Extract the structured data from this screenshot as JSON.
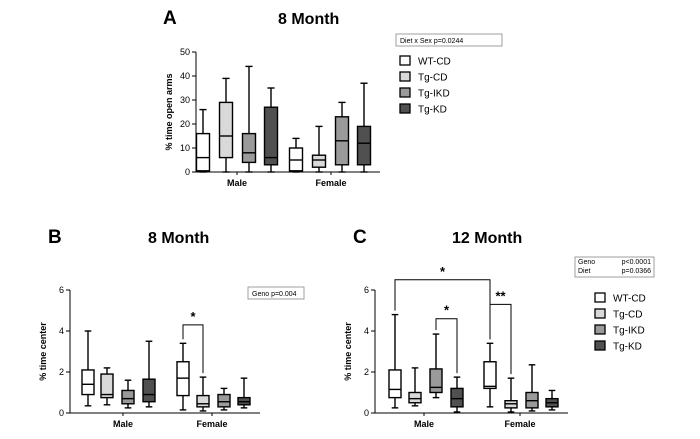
{
  "colors": {
    "WT-CD": "#ffffff",
    "Tg-CD": "#d9d9d9",
    "Tg-IKD": "#9a9a9a",
    "Tg-KD": "#505050"
  },
  "legend": [
    "WT-CD",
    "Tg-CD",
    "Tg-IKD",
    "Tg-KD"
  ],
  "chart_data": [
    {
      "panel": "A",
      "type": "box",
      "title": "8 Month",
      "ylabel": "% time open arms",
      "ylim": [
        0,
        50
      ],
      "yticks": [
        "0",
        "10",
        "20",
        "30",
        "40",
        "50"
      ],
      "categories": [
        "Male",
        "Female"
      ],
      "stat_box": [
        "Diet x Sex  p=0.0244"
      ],
      "boxes": [
        {
          "group": "Male",
          "series": "WT-CD",
          "min": 0,
          "q1": 0.5,
          "median": 6,
          "q3": 16,
          "max": 26
        },
        {
          "group": "Male",
          "series": "Tg-CD",
          "min": 0,
          "q1": 6,
          "median": 15,
          "q3": 29,
          "max": 39
        },
        {
          "group": "Male",
          "series": "Tg-IKD",
          "min": 0,
          "q1": 4,
          "median": 8,
          "q3": 16,
          "max": 44
        },
        {
          "group": "Male",
          "series": "Tg-KD",
          "min": 0,
          "q1": 3,
          "median": 6,
          "q3": 27,
          "max": 35
        },
        {
          "group": "Female",
          "series": "WT-CD",
          "min": 0,
          "q1": 0.5,
          "median": 5,
          "q3": 10,
          "max": 14
        },
        {
          "group": "Female",
          "series": "Tg-CD",
          "min": 0,
          "q1": 2,
          "median": 5,
          "q3": 7,
          "max": 19
        },
        {
          "group": "Female",
          "series": "Tg-IKD",
          "min": 0,
          "q1": 3,
          "median": 13,
          "q3": 23,
          "max": 29
        },
        {
          "group": "Female",
          "series": "Tg-KD",
          "min": 0,
          "q1": 3,
          "median": 12,
          "q3": 19,
          "max": 37
        }
      ],
      "sig": []
    },
    {
      "panel": "B",
      "type": "box",
      "title": "8 Month",
      "ylabel": "% time center",
      "ylim": [
        0,
        6
      ],
      "yticks": [
        "0",
        "2",
        "4",
        "6"
      ],
      "categories": [
        "Male",
        "Female"
      ],
      "stat_box": [
        "Geno p=0.004"
      ],
      "boxes": [
        {
          "group": "Male",
          "series": "WT-CD",
          "min": 0.35,
          "q1": 0.9,
          "median": 1.4,
          "q3": 2.1,
          "max": 4.0
        },
        {
          "group": "Male",
          "series": "Tg-CD",
          "min": 0.4,
          "q1": 0.75,
          "median": 0.9,
          "q3": 1.9,
          "max": 2.2
        },
        {
          "group": "Male",
          "series": "Tg-IKD",
          "min": 0.25,
          "q1": 0.45,
          "median": 0.7,
          "q3": 1.1,
          "max": 1.6
        },
        {
          "group": "Male",
          "series": "Tg-KD",
          "min": 0.3,
          "q1": 0.55,
          "median": 0.9,
          "q3": 1.65,
          "max": 3.5
        },
        {
          "group": "Female",
          "series": "WT-CD",
          "min": 0.15,
          "q1": 0.85,
          "median": 1.7,
          "q3": 2.5,
          "max": 3.4
        },
        {
          "group": "Female",
          "series": "Tg-CD",
          "min": 0.1,
          "q1": 0.3,
          "median": 0.45,
          "q3": 0.85,
          "max": 1.75
        },
        {
          "group": "Female",
          "series": "Tg-IKD",
          "min": 0.15,
          "q1": 0.3,
          "median": 0.55,
          "q3": 0.9,
          "max": 1.2
        },
        {
          "group": "Female",
          "series": "Tg-KD",
          "min": 0.25,
          "q1": 0.4,
          "median": 0.55,
          "q3": 0.75,
          "max": 1.7
        }
      ],
      "sig": [
        {
          "label": "*",
          "from": [
            1,
            0
          ],
          "to": [
            1,
            1
          ],
          "y": 4.3
        }
      ]
    },
    {
      "panel": "C",
      "type": "box",
      "title": "12 Month",
      "ylabel": "% time center",
      "ylim": [
        0,
        6
      ],
      "yticks": [
        "0",
        "2",
        "4",
        "6"
      ],
      "categories": [
        "Male",
        "Female"
      ],
      "stat_box": [
        "Geno",
        "p<0.0001",
        "Diet",
        "p=0.0366"
      ],
      "boxes": [
        {
          "group": "Male",
          "series": "WT-CD",
          "min": 0.25,
          "q1": 0.75,
          "median": 1.15,
          "q3": 2.1,
          "max": 4.8
        },
        {
          "group": "Male",
          "series": "Tg-CD",
          "min": 0.35,
          "q1": 0.5,
          "median": 0.7,
          "q3": 1.0,
          "max": 2.2
        },
        {
          "group": "Male",
          "series": "Tg-IKD",
          "min": 0.75,
          "q1": 1.0,
          "median": 1.25,
          "q3": 2.15,
          "max": 3.85
        },
        {
          "group": "Male",
          "series": "Tg-KD",
          "min": 0.05,
          "q1": 0.3,
          "median": 0.7,
          "q3": 1.2,
          "max": 1.75
        },
        {
          "group": "Female",
          "series": "WT-CD",
          "min": 0.3,
          "q1": 1.2,
          "median": 1.3,
          "q3": 2.5,
          "max": 3.4
        },
        {
          "group": "Female",
          "series": "Tg-CD",
          "min": 0.05,
          "q1": 0.25,
          "median": 0.45,
          "q3": 0.6,
          "max": 1.7
        },
        {
          "group": "Female",
          "series": "Tg-IKD",
          "min": 0.1,
          "q1": 0.25,
          "median": 0.6,
          "q3": 1.0,
          "max": 2.35
        },
        {
          "group": "Female",
          "series": "Tg-KD",
          "min": 0.15,
          "q1": 0.3,
          "median": 0.5,
          "q3": 0.7,
          "max": 1.1
        }
      ],
      "sig": [
        {
          "label": "*",
          "from": [
            0,
            0
          ],
          "to": [
            1,
            0
          ],
          "y": 6.5
        },
        {
          "label": "*",
          "from": [
            0,
            2
          ],
          "to": [
            0,
            3
          ],
          "y": 4.6
        },
        {
          "label": "**",
          "from": [
            1,
            0
          ],
          "to": [
            1,
            1
          ],
          "y": 5.3
        }
      ]
    }
  ]
}
